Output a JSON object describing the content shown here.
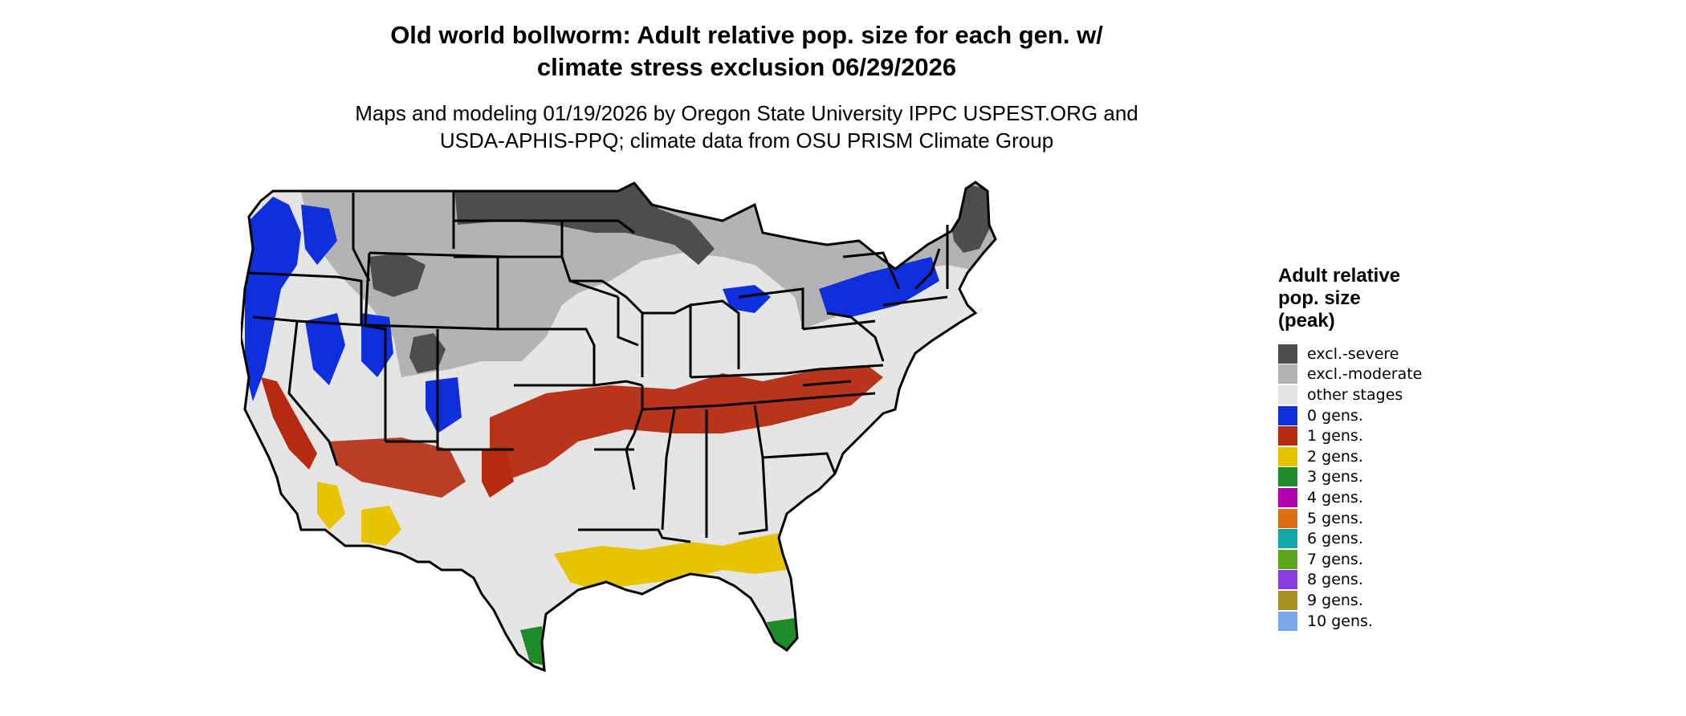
{
  "title": {
    "line1": "Old world bollworm: Adult relative pop. size for each gen. w/",
    "line2": "climate stress exclusion 06/29/2026"
  },
  "subtitle": {
    "line1": "Maps and modeling 01/19/2026 by Oregon State University IPPC USPEST.ORG and",
    "line2": "USDA-APHIS-PPQ; climate data from OSU PRISM Climate Group"
  },
  "legend": {
    "title_line1": "Adult relative",
    "title_line2": "pop. size",
    "title_line3": "(peak)",
    "items": [
      {
        "label": "excl.-severe",
        "color": "#4d4d4d"
      },
      {
        "label": "excl.-moderate",
        "color": "#b3b3b3"
      },
      {
        "label": "other stages",
        "color": "#e5e5e5"
      },
      {
        "label": "0 gens.",
        "color": "#0f2fdc"
      },
      {
        "label": "1 gens.",
        "color": "#b52a10"
      },
      {
        "label": "2 gens.",
        "color": "#e8c300"
      },
      {
        "label": "3 gens.",
        "color": "#1f8a2a"
      },
      {
        "label": "4 gens.",
        "color": "#b000b0"
      },
      {
        "label": "5 gens.",
        "color": "#de6f12"
      },
      {
        "label": "6 gens.",
        "color": "#13a6a6"
      },
      {
        "label": "7 gens.",
        "color": "#5aa818"
      },
      {
        "label": "8 gens.",
        "color": "#8a3ee0"
      },
      {
        "label": "9 gens.",
        "color": "#a89020"
      },
      {
        "label": "10 gens.",
        "color": "#7aa8ea"
      }
    ]
  }
}
